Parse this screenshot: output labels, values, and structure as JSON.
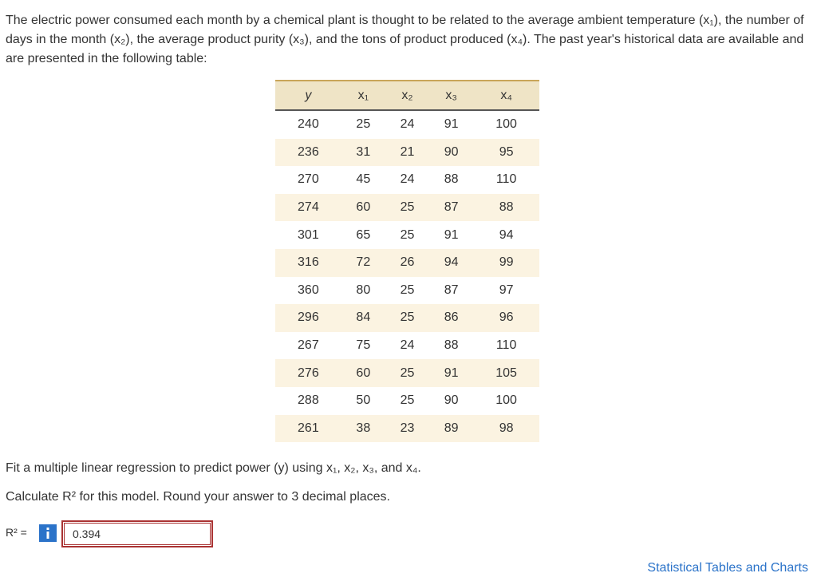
{
  "intro": "The electric power consumed each month by a chemical plant is thought to be related to the average ambient temperature (x₁), the number of days in the month (x₂), the average product purity (x₃), and the tons of product produced (x₄). The past year's historical data are available and are presented in the following table:",
  "table": {
    "headers": [
      "y",
      "x₁",
      "x₂",
      "x₃",
      "x₄"
    ],
    "rows": [
      [
        240,
        25,
        24,
        91,
        100
      ],
      [
        236,
        31,
        21,
        90,
        95
      ],
      [
        270,
        45,
        24,
        88,
        110
      ],
      [
        274,
        60,
        25,
        87,
        88
      ],
      [
        301,
        65,
        25,
        91,
        94
      ],
      [
        316,
        72,
        26,
        94,
        99
      ],
      [
        360,
        80,
        25,
        87,
        97
      ],
      [
        296,
        84,
        25,
        86,
        96
      ],
      [
        267,
        75,
        24,
        88,
        110
      ],
      [
        276,
        60,
        25,
        91,
        105
      ],
      [
        288,
        50,
        25,
        90,
        100
      ],
      [
        261,
        38,
        23,
        89,
        98
      ]
    ]
  },
  "question": {
    "fit": "Fit a multiple linear regression to predict power (y) using x₁, x₂, x₃, and x₄.",
    "calculate": "Calculate R² for this model. Round your answer to 3 decimal places."
  },
  "answer": {
    "label": "R² =",
    "value": 0.394
  },
  "link": "Statistical Tables and Charts"
}
